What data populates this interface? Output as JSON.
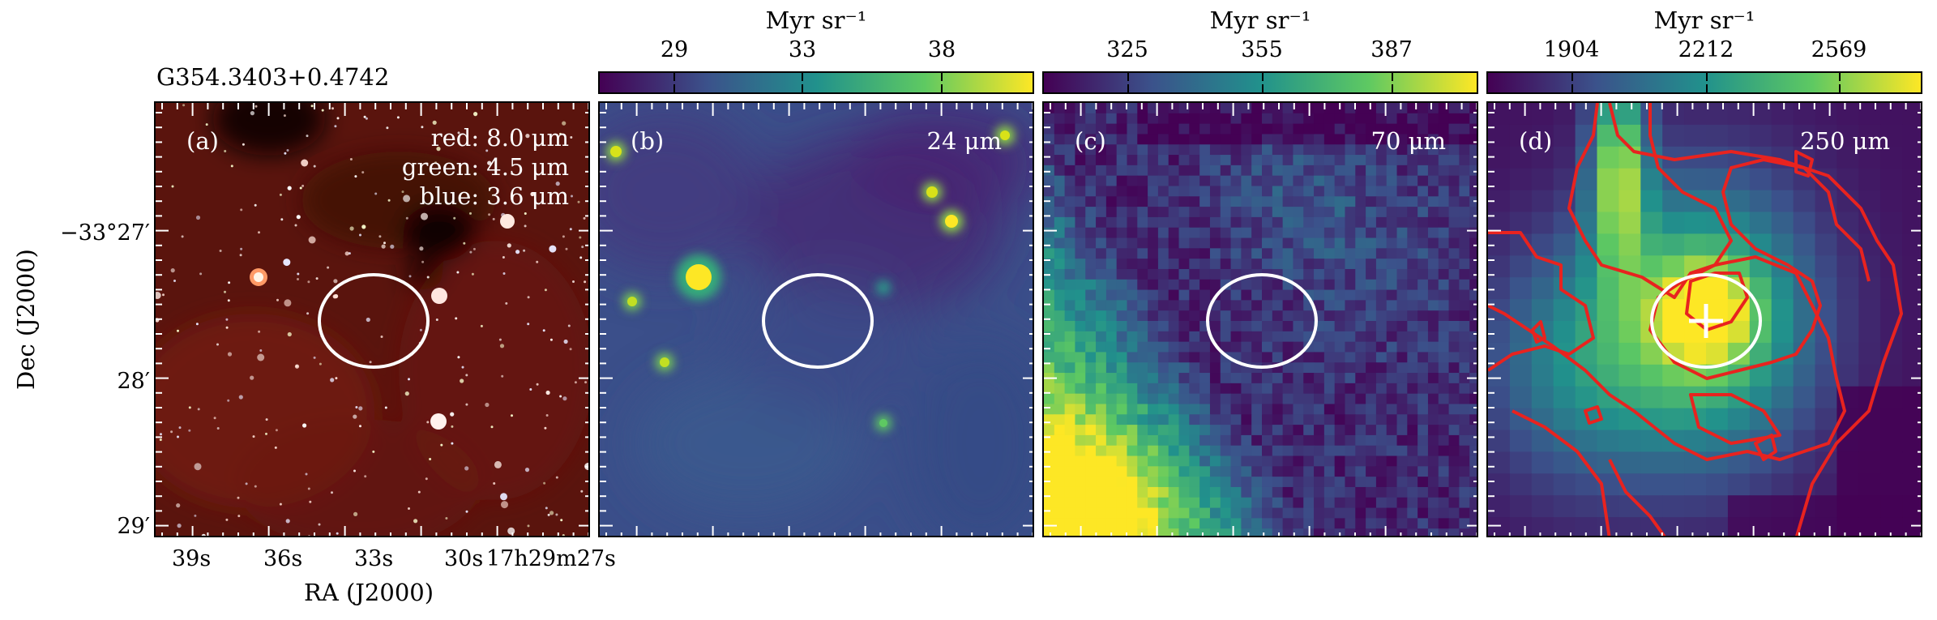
{
  "figure": {
    "source_name": "G354.3403+0.4742",
    "ylabel": "Dec (J2000)",
    "xlabel": "RA (J2000)",
    "dec_ticks": [
      "−33°27′",
      "28′",
      "29′"
    ],
    "ra_ticks": [
      "39s",
      "36s",
      "33s",
      "30s",
      "17h29m27s"
    ]
  },
  "panels": [
    {
      "tag": "(a)",
      "legend": [
        "red: 8.0 μm",
        "green: 4.5 μm",
        "blue: 3.6 μm"
      ]
    },
    {
      "tag": "(b)",
      "band": "24 μm",
      "colorbar_unit": "Myr sr⁻¹",
      "colorbar_ticks": [
        "29",
        "33",
        "38"
      ]
    },
    {
      "tag": "(c)",
      "band": "70 μm",
      "colorbar_unit": "Myr sr⁻¹",
      "colorbar_ticks": [
        "325",
        "355",
        "387"
      ]
    },
    {
      "tag": "(d)",
      "band": "250 μm",
      "colorbar_unit": "Myr sr⁻¹",
      "colorbar_ticks": [
        "1904",
        "2212",
        "2569"
      ]
    }
  ],
  "colors": {
    "aperture": "#ffffff",
    "contour": "#e8231f",
    "marker": "#ffffff",
    "viridis": [
      "#440154",
      "#3b528b",
      "#21918c",
      "#5ec962",
      "#fde725"
    ]
  }
}
